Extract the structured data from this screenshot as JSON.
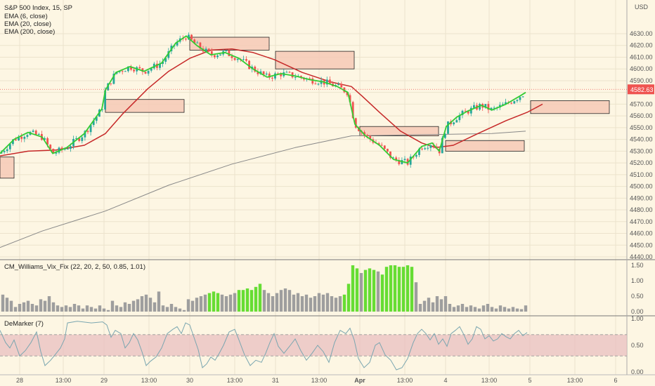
{
  "header": {
    "symbol_line": "S&P 500 Index, 15, SP",
    "indicators": [
      "EMA (6, close)",
      "EMA (20, close)",
      "EMA (200, close)"
    ],
    "currency": "USD"
  },
  "price_axis": {
    "ticks": [
      "4630.00",
      "4620.00",
      "4610.00",
      "4600.00",
      "4590.00",
      "4570.00",
      "4560.00",
      "4550.00",
      "4540.00",
      "4530.00",
      "4520.00",
      "4510.00",
      "4500.00",
      "4490.00",
      "4480.00",
      "4470.00",
      "4460.00",
      "4450.00",
      "4440.00"
    ],
    "last_price": "4582.63"
  },
  "time_axis": {
    "labels": [
      "28",
      "13:00",
      "29",
      "13:00",
      "30",
      "13:00",
      "31",
      "13:00",
      "Apr",
      "13:00",
      "4",
      "13:00",
      "5",
      "13:00",
      "6"
    ]
  },
  "vix_panel": {
    "title": "CM_Williams_Vix_Fix (22, 20, 2, 50, 0.85, 1.01)",
    "ticks": [
      "1.50",
      "1.00",
      "0.50",
      "0.00"
    ]
  },
  "demarker_panel": {
    "title": "DeMarker (7)",
    "ticks": [
      "1.00",
      "0.50",
      "0.00"
    ]
  },
  "colors": {
    "background": "#fdf6e3",
    "up_candle": "#26a69a",
    "down_candle": "#ef5350",
    "ema6": "#33cc33",
    "ema20": "#c62828",
    "ema200": "#888888",
    "zone_fill": "#f6c9b6",
    "vix_gray": "#9e9e9e",
    "vix_green": "#66dd33",
    "demarker_line": "#7aa6b0",
    "demarker_band": "#e8bfc0",
    "last_price_tag": "#ef5350"
  },
  "chart_data": {
    "type": "candlestick",
    "price_range": [
      4438,
      4638
    ],
    "last_price": 4582.63,
    "ema200_points": [
      [
        0,
        4448
      ],
      [
        60,
        4462
      ],
      [
        150,
        4479
      ],
      [
        240,
        4501
      ],
      [
        330,
        4519
      ],
      [
        420,
        4533
      ],
      [
        500,
        4543
      ],
      [
        600,
        4544
      ],
      [
        700,
        4545
      ],
      [
        748,
        4547
      ]
    ],
    "ema20_points": [
      [
        0,
        4526
      ],
      [
        40,
        4530
      ],
      [
        80,
        4531
      ],
      [
        120,
        4535
      ],
      [
        150,
        4545
      ],
      [
        175,
        4562
      ],
      [
        210,
        4583
      ],
      [
        240,
        4598
      ],
      [
        270,
        4609
      ],
      [
        300,
        4616
      ],
      [
        330,
        4617
      ],
      [
        360,
        4614
      ],
      [
        390,
        4608
      ],
      [
        430,
        4597
      ],
      [
        470,
        4589
      ],
      [
        500,
        4585
      ],
      [
        515,
        4577
      ],
      [
        540,
        4563
      ],
      [
        570,
        4547
      ],
      [
        600,
        4537
      ],
      [
        620,
        4533
      ],
      [
        645,
        4535
      ],
      [
        680,
        4545
      ],
      [
        720,
        4556
      ],
      [
        750,
        4563
      ],
      [
        772,
        4570
      ]
    ],
    "ema6_points": [
      [
        0,
        4528
      ],
      [
        20,
        4540
      ],
      [
        40,
        4546
      ],
      [
        60,
        4542
      ],
      [
        75,
        4528
      ],
      [
        95,
        4533
      ],
      [
        120,
        4545
      ],
      [
        145,
        4566
      ],
      [
        150,
        4582
      ],
      [
        165,
        4597
      ],
      [
        185,
        4602
      ],
      [
        205,
        4598
      ],
      [
        230,
        4605
      ],
      [
        250,
        4622
      ],
      [
        265,
        4628
      ],
      [
        280,
        4620
      ],
      [
        300,
        4612
      ],
      [
        320,
        4614
      ],
      [
        340,
        4609
      ],
      [
        360,
        4600
      ],
      [
        380,
        4593
      ],
      [
        400,
        4596
      ],
      [
        420,
        4594
      ],
      [
        440,
        4591
      ],
      [
        460,
        4589
      ],
      [
        480,
        4585
      ],
      [
        495,
        4580
      ],
      [
        505,
        4553
      ],
      [
        520,
        4543
      ],
      [
        540,
        4535
      ],
      [
        560,
        4523
      ],
      [
        580,
        4520
      ],
      [
        600,
        4534
      ],
      [
        615,
        4537
      ],
      [
        625,
        4530
      ],
      [
        635,
        4551
      ],
      [
        650,
        4559
      ],
      [
        665,
        4564
      ],
      [
        685,
        4569
      ],
      [
        700,
        4565
      ],
      [
        720,
        4570
      ],
      [
        740,
        4577
      ],
      [
        748,
        4580
      ]
    ],
    "zones": [
      {
        "x1": 0,
        "x2": 20,
        "top": 4525,
        "bottom": 4507
      },
      {
        "x1": 150,
        "x2": 262,
        "top": 4574,
        "bottom": 4563
      },
      {
        "x1": 270,
        "x2": 383,
        "top": 4627,
        "bottom": 4616
      },
      {
        "x1": 392,
        "x2": 504,
        "top": 4615,
        "bottom": 4600
      },
      {
        "x1": 512,
        "x2": 624,
        "top": 4551,
        "bottom": 4543
      },
      {
        "x1": 634,
        "x2": 746,
        "top": 4539,
        "bottom": 4530
      },
      {
        "x1": 755,
        "x2": 867,
        "top": 4573,
        "bottom": 4562
      }
    ],
    "vix_fix": [
      [
        4,
        0.55
      ],
      [
        10,
        0.45
      ],
      [
        16,
        0.35
      ],
      [
        22,
        0.15
      ],
      [
        28,
        0.25
      ],
      [
        34,
        0.3
      ],
      [
        40,
        0.35
      ],
      [
        46,
        0.25
      ],
      [
        52,
        0.2
      ],
      [
        58,
        0.4
      ],
      [
        64,
        0.35
      ],
      [
        70,
        0.5
      ],
      [
        76,
        0.3
      ],
      [
        82,
        0.2
      ],
      [
        88,
        0.15
      ],
      [
        94,
        0.2
      ],
      [
        100,
        0.15
      ],
      [
        106,
        0.25
      ],
      [
        112,
        0.2
      ],
      [
        118,
        0.1
      ],
      [
        124,
        0.2
      ],
      [
        130,
        0.15
      ],
      [
        136,
        0.1
      ],
      [
        142,
        0.2
      ],
      [
        148,
        0.1
      ],
      [
        154,
        0.05
      ],
      [
        160,
        0.35
      ],
      [
        166,
        0.2
      ],
      [
        172,
        0.15
      ],
      [
        178,
        0.3
      ],
      [
        184,
        0.25
      ],
      [
        190,
        0.35
      ],
      [
        196,
        0.4
      ],
      [
        202,
        0.5
      ],
      [
        208,
        0.55
      ],
      [
        214,
        0.45
      ],
      [
        220,
        0.3
      ],
      [
        226,
        0.65
      ],
      [
        232,
        0.2
      ],
      [
        238,
        0.15
      ],
      [
        244,
        0.25
      ],
      [
        250,
        0.15
      ],
      [
        256,
        0.1
      ],
      [
        262,
        0.05
      ],
      [
        268,
        0.4
      ],
      [
        274,
        0.35
      ],
      [
        280,
        0.45
      ],
      [
        286,
        0.5
      ],
      [
        292,
        0.55
      ],
      [
        298,
        0.6,
        "g"
      ],
      [
        304,
        0.65,
        "g"
      ],
      [
        310,
        0.6,
        "g"
      ],
      [
        316,
        0.55
      ],
      [
        322,
        0.5
      ],
      [
        328,
        0.55
      ],
      [
        334,
        0.6
      ],
      [
        340,
        0.7,
        "g"
      ],
      [
        346,
        0.7,
        "g"
      ],
      [
        352,
        0.75,
        "g"
      ],
      [
        358,
        0.7,
        "g"
      ],
      [
        364,
        0.8,
        "g"
      ],
      [
        370,
        0.9,
        "g"
      ],
      [
        376,
        0.7
      ],
      [
        382,
        0.6
      ],
      [
        388,
        0.5
      ],
      [
        394,
        0.6
      ],
      [
        400,
        0.7
      ],
      [
        406,
        0.75
      ],
      [
        412,
        0.7
      ],
      [
        418,
        0.55
      ],
      [
        424,
        0.6
      ],
      [
        430,
        0.5
      ],
      [
        436,
        0.55
      ],
      [
        442,
        0.45
      ],
      [
        448,
        0.5
      ],
      [
        454,
        0.6
      ],
      [
        460,
        0.55
      ],
      [
        466,
        0.6
      ],
      [
        472,
        0.5
      ],
      [
        478,
        0.45
      ],
      [
        484,
        0.5
      ],
      [
        490,
        0.55,
        "g"
      ],
      [
        496,
        0.9,
        "g"
      ],
      [
        502,
        1.5,
        "g"
      ],
      [
        508,
        1.4,
        "g"
      ],
      [
        514,
        1.25
      ],
      [
        520,
        1.35,
        "g"
      ],
      [
        526,
        1.4,
        "g"
      ],
      [
        532,
        1.35,
        "g"
      ],
      [
        538,
        1.3
      ],
      [
        544,
        1.2,
        "g"
      ],
      [
        550,
        1.45,
        "g"
      ],
      [
        556,
        1.5,
        "g"
      ],
      [
        562,
        1.5,
        "g"
      ],
      [
        568,
        1.45,
        "g"
      ],
      [
        574,
        1.45,
        "g"
      ],
      [
        580,
        1.5,
        "g"
      ],
      [
        586,
        1.45,
        "g"
      ],
      [
        592,
        0.95
      ],
      [
        598,
        0.25
      ],
      [
        604,
        0.35
      ],
      [
        610,
        0.45
      ],
      [
        616,
        0.3
      ],
      [
        622,
        0.5
      ],
      [
        628,
        0.4
      ],
      [
        634,
        0.5
      ],
      [
        640,
        0.25
      ],
      [
        646,
        0.15
      ],
      [
        652,
        0.2
      ],
      [
        658,
        0.25
      ],
      [
        664,
        0.15
      ],
      [
        670,
        0.2
      ],
      [
        676,
        0.15
      ],
      [
        682,
        0.1
      ],
      [
        688,
        0.2
      ],
      [
        694,
        0.25
      ],
      [
        700,
        0.15
      ],
      [
        706,
        0.1
      ],
      [
        712,
        0.2
      ],
      [
        718,
        0.15
      ],
      [
        724,
        0.1
      ],
      [
        730,
        0.15
      ],
      [
        736,
        0.1
      ],
      [
        742,
        0.08
      ],
      [
        748,
        0.2
      ]
    ],
    "demarker": [
      [
        0,
        0.78
      ],
      [
        8,
        0.55
      ],
      [
        14,
        0.45
      ],
      [
        20,
        0.6
      ],
      [
        28,
        0.3
      ],
      [
        36,
        0.4
      ],
      [
        44,
        0.55
      ],
      [
        52,
        0.75
      ],
      [
        58,
        0.38
      ],
      [
        64,
        0.12
      ],
      [
        72,
        0.22
      ],
      [
        80,
        0.35
      ],
      [
        86,
        0.45
      ],
      [
        92,
        0.62
      ],
      [
        96,
        0.92
      ],
      [
        110,
        0.95
      ],
      [
        130,
        0.92
      ],
      [
        146,
        0.94
      ],
      [
        152,
        0.88
      ],
      [
        158,
        0.65
      ],
      [
        164,
        0.78
      ],
      [
        172,
        0.72
      ],
      [
        178,
        0.45
      ],
      [
        184,
        0.55
      ],
      [
        190,
        0.72
      ],
      [
        196,
        0.6
      ],
      [
        202,
        0.38
      ],
      [
        208,
        0.12
      ],
      [
        214,
        0.2
      ],
      [
        222,
        0.28
      ],
      [
        230,
        0.45
      ],
      [
        238,
        0.72
      ],
      [
        246,
        0.8
      ],
      [
        252,
        0.85
      ],
      [
        258,
        0.72
      ],
      [
        264,
        0.92
      ],
      [
        270,
        0.88
      ],
      [
        276,
        0.65
      ],
      [
        282,
        0.42
      ],
      [
        288,
        0.08
      ],
      [
        294,
        0.15
      ],
      [
        300,
        0.28
      ],
      [
        306,
        0.22
      ],
      [
        312,
        0.35
      ],
      [
        318,
        0.5
      ],
      [
        326,
        0.75
      ],
      [
        334,
        0.8
      ],
      [
        340,
        0.6
      ],
      [
        348,
        0.32
      ],
      [
        356,
        0.12
      ],
      [
        364,
        0.22
      ],
      [
        372,
        0.18
      ],
      [
        378,
        0.35
      ],
      [
        384,
        0.55
      ],
      [
        390,
        0.72
      ],
      [
        396,
        0.48
      ],
      [
        404,
        0.35
      ],
      [
        412,
        0.48
      ],
      [
        420,
        0.62
      ],
      [
        428,
        0.4
      ],
      [
        436,
        0.22
      ],
      [
        444,
        0.35
      ],
      [
        452,
        0.5
      ],
      [
        460,
        0.38
      ],
      [
        468,
        0.18
      ],
      [
        476,
        0.55
      ],
      [
        484,
        0.78
      ],
      [
        492,
        0.72
      ],
      [
        498,
        0.82
      ],
      [
        504,
        0.6
      ],
      [
        510,
        0.25
      ],
      [
        518,
        0.08
      ],
      [
        526,
        0.18
      ],
      [
        534,
        0.5
      ],
      [
        540,
        0.55
      ],
      [
        548,
        0.32
      ],
      [
        556,
        0.22
      ],
      [
        564,
        0.04
      ],
      [
        572,
        0.08
      ],
      [
        580,
        0.25
      ],
      [
        588,
        0.55
      ],
      [
        594,
        0.72
      ],
      [
        600,
        0.8
      ],
      [
        606,
        0.72
      ],
      [
        612,
        0.6
      ],
      [
        618,
        0.72
      ],
      [
        624,
        0.52
      ],
      [
        630,
        0.62
      ],
      [
        636,
        0.48
      ],
      [
        642,
        0.72
      ],
      [
        648,
        0.78
      ],
      [
        654,
        0.85
      ],
      [
        660,
        0.7
      ],
      [
        666,
        0.52
      ],
      [
        672,
        0.62
      ],
      [
        678,
        0.85
      ],
      [
        684,
        0.8
      ],
      [
        690,
        0.62
      ],
      [
        696,
        0.68
      ],
      [
        702,
        0.58
      ],
      [
        708,
        0.62
      ],
      [
        714,
        0.72
      ],
      [
        720,
        0.66
      ],
      [
        726,
        0.62
      ],
      [
        732,
        0.72
      ],
      [
        738,
        0.78
      ],
      [
        744,
        0.68
      ],
      [
        750,
        0.74
      ]
    ]
  }
}
